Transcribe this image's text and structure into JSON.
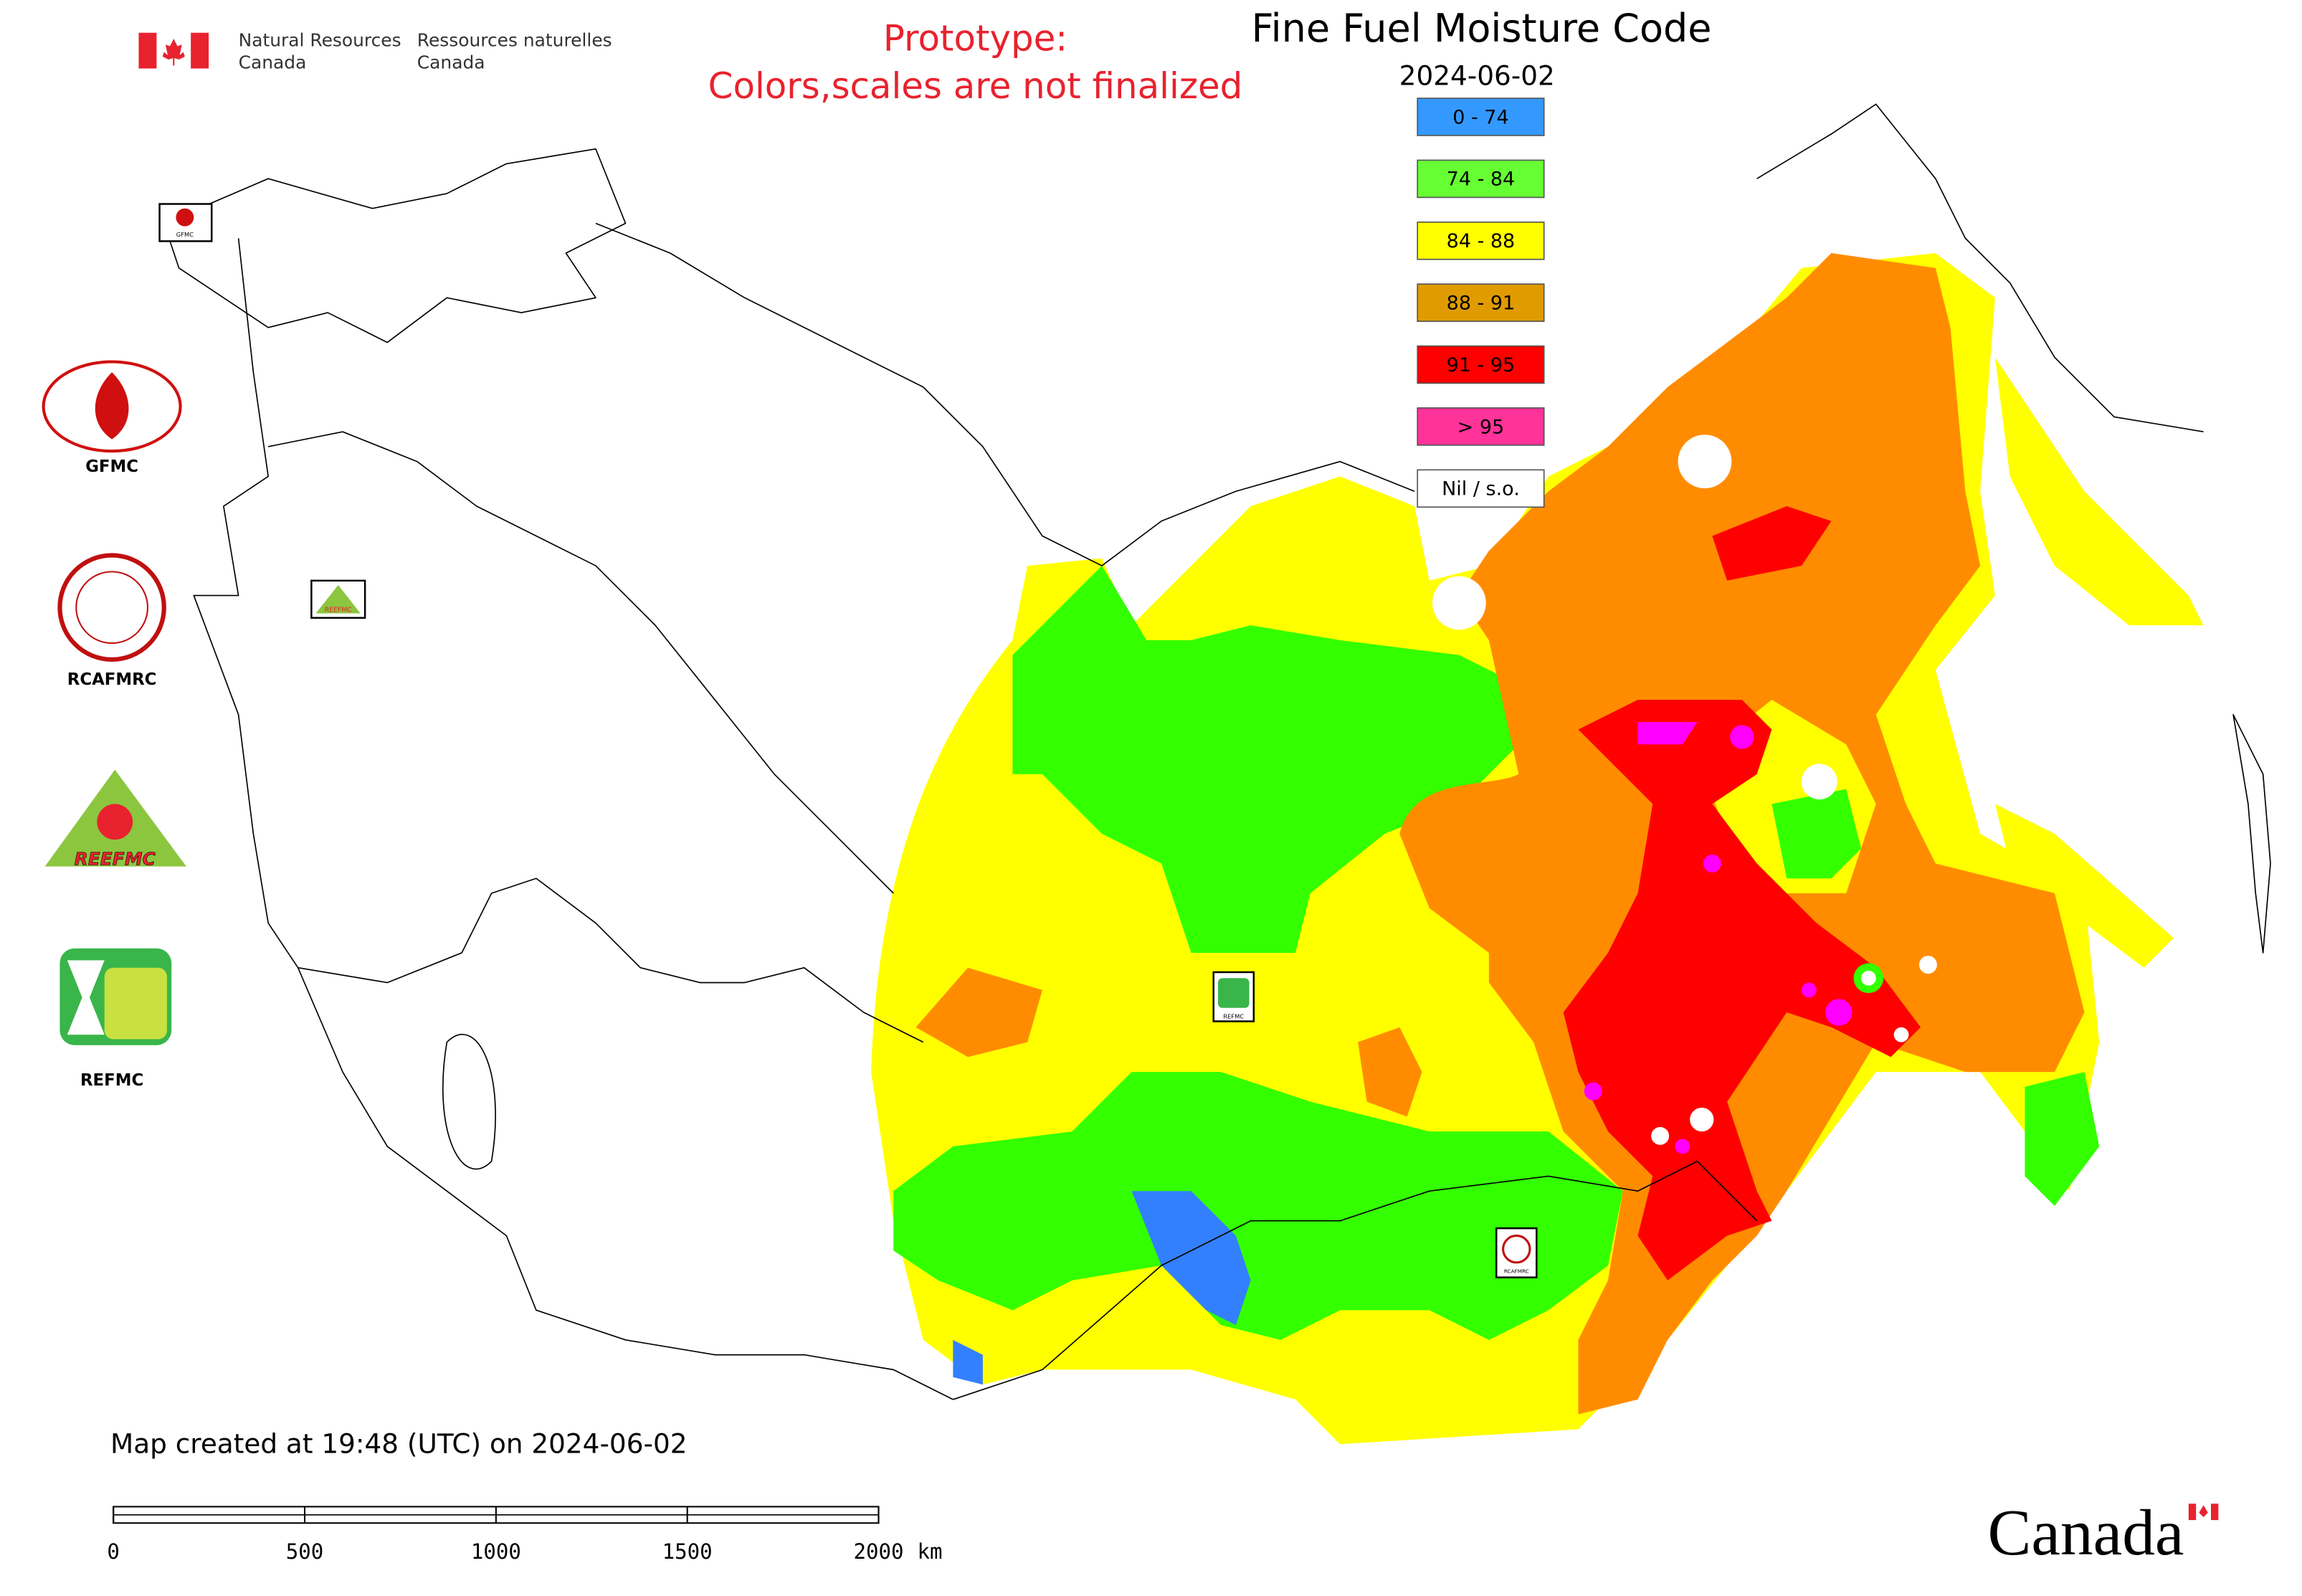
{
  "header": {
    "agency_en_1": "Natural Resources",
    "agency_en_2": "Canada",
    "agency_fr_1": "Ressources naturelles",
    "agency_fr_2": "Canada"
  },
  "notice": [
    "Prototype:",
    "Colors,scales are not finalized"
  ],
  "title": "Fine Fuel Moisture Code",
  "date": "2024-06-02",
  "legend": [
    {
      "label": "0 - 74",
      "color": "#3399ff"
    },
    {
      "label": "74 - 84",
      "color": "#66ff33"
    },
    {
      "label": "84 - 88",
      "color": "#ffff00"
    },
    {
      "label": "88 - 91",
      "color": "#e09b00"
    },
    {
      "label": "91 - 95",
      "color": "#ff0000"
    },
    {
      "label": "> 95",
      "color": "#ff3399"
    },
    {
      "label": "Nil / s.o.",
      "color": "#ffffff"
    }
  ],
  "side_logos": [
    "GFMC",
    "RCAFMRC",
    "REEFMC",
    "REFMC"
  ],
  "map_markers": [
    "GFMC",
    "REEFMC",
    "REFMC",
    "RCAFMRC"
  ],
  "footer_note": "Map created at 19:48 (UTC) on 2024-06-02",
  "scale_bar": {
    "ticks": [
      0,
      500,
      1000,
      1500,
      2000
    ],
    "unit": "km"
  },
  "wordmark": "Canada"
}
